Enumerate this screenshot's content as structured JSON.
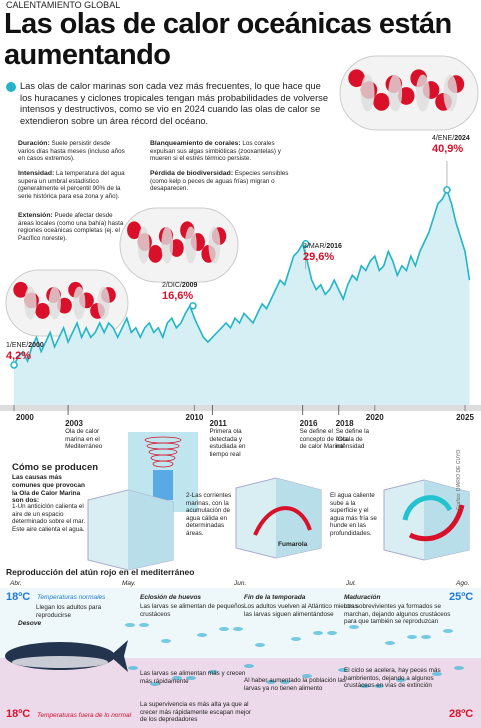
{
  "header": {
    "kicker": "CALENTAMIENTO GLOBAL",
    "title": "Las olas de calor oceánicas están aumentando",
    "intro": "Las olas de calor marinas son cada vez más frecuentes, lo que hace que los huracanes y ciclones tropicales tengan más probabilidades de volverse intensos y destructivos, como se vio en 2024 cuando las olas de calor se extendieron sobre un área récord del océano."
  },
  "definitions": [
    {
      "term": "Duración:",
      "text": "Suele persistir desde varios días hasta meses (incluso años en casos extremos)."
    },
    {
      "term": "Intensidad:",
      "text": "La temperatura del agua supera un umbral estadístico (generalmente el percentil 90% de la serie histórica para esa zona y año)."
    },
    {
      "term": "Extensión:",
      "text": "Puede afectar desde áreas locales (como una bahía) hasta regiones oceánicas completas (ej. el Pacífico noreste)."
    },
    {
      "term": "Blanqueamiento de corales:",
      "text": "Los corales expulsan sus algas simbióticas (zooxantelas) y mueren si el estrés térmico persiste."
    },
    {
      "term": "Pérdida de biodiversidad:",
      "text": "Especies sensibles (como kelp o peces de aguas frías) migran o desaparecen."
    }
  ],
  "chart_data": {
    "type": "line",
    "color": "#22b5c8",
    "area_color": "#d5eff4",
    "x": [
      2000,
      2000.25,
      2000.5,
      2000.75,
      2001,
      2001.25,
      2001.5,
      2001.75,
      2002,
      2002.25,
      2002.5,
      2002.75,
      2003,
      2003.25,
      2003.5,
      2003.75,
      2004,
      2004.25,
      2004.5,
      2004.75,
      2005,
      2005.25,
      2005.5,
      2005.75,
      2006,
      2006.25,
      2006.5,
      2006.75,
      2007,
      2007.25,
      2007.5,
      2007.75,
      2008,
      2008.25,
      2008.5,
      2008.75,
      2009,
      2009.25,
      2009.5,
      2009.75,
      2010,
      2010.25,
      2010.5,
      2010.75,
      2011,
      2011.25,
      2011.5,
      2011.75,
      2012,
      2012.25,
      2012.5,
      2012.75,
      2013,
      2013.25,
      2013.5,
      2013.75,
      2014,
      2014.25,
      2014.5,
      2014.75,
      2015,
      2015.25,
      2015.5,
      2015.75,
      2016,
      2016.25,
      2016.5,
      2016.75,
      2017,
      2017.25,
      2017.5,
      2017.75,
      2018,
      2018.25,
      2018.5,
      2018.75,
      2019,
      2019.25,
      2019.5,
      2019.75,
      2020,
      2020.25,
      2020.5,
      2020.75,
      2021,
      2021.25,
      2021.5,
      2021.75,
      2022,
      2022.25,
      2022.5,
      2022.75,
      2023,
      2023.25,
      2023.5,
      2023.75,
      2024,
      2024.25,
      2024.5,
      2024.75,
      2025,
      2025.25
    ],
    "values": [
      4.2,
      6,
      7,
      5,
      8,
      10,
      7,
      9,
      11,
      8,
      10,
      12,
      9,
      11,
      13,
      10,
      12,
      10,
      11,
      13,
      11,
      13,
      12,
      10,
      12,
      14,
      11,
      12,
      10,
      12,
      13,
      11,
      12,
      10,
      13,
      14,
      12,
      13,
      15,
      16.6,
      14,
      12,
      10,
      9,
      10,
      11,
      12,
      13,
      12,
      14,
      13,
      15,
      14,
      13,
      15,
      17,
      16,
      18,
      20,
      22,
      21,
      24,
      27,
      28,
      29.6,
      26,
      22,
      20,
      21,
      19,
      20,
      22,
      20,
      18,
      21,
      23,
      22,
      25,
      24,
      26,
      27,
      24,
      25,
      28,
      26,
      23,
      25,
      24,
      27,
      25,
      28,
      30,
      32,
      35,
      38,
      39,
      40.9,
      38,
      34,
      31,
      28,
      22
    ],
    "xticks": [
      2000,
      2010,
      2020,
      2025
    ],
    "annotations": [
      {
        "date": "1/ENE/",
        "year": "2000",
        "x": 2000,
        "value": 4.2,
        "label": "4,2%"
      },
      {
        "date": "2/DIC/",
        "year": "2009",
        "x": 2009.92,
        "value": 16.6,
        "label": "16,6%"
      },
      {
        "date": "3/MAR/",
        "year": "2016",
        "x": 2016.17,
        "value": 29.6,
        "label": "29,6%"
      },
      {
        "date": "4/ENE/",
        "year": "2024",
        "x": 2024,
        "value": 40.9,
        "label": "40,9%"
      }
    ],
    "events": [
      {
        "year": 2003,
        "text": "Ola de calor marina en el Mediterráneo"
      },
      {
        "year": 2011,
        "text": "Primera ola detectada y estudiada en tiempo real"
      },
      {
        "year": 2016,
        "text": "Se define el concepto de \"Ola de calor Marina\""
      },
      {
        "year": 2018,
        "text": "Se define la escala de intensidad"
      }
    ]
  },
  "causes": {
    "title": "Cómo se producen",
    "lead": "Las causas más comunes que provocan la Ola de Calor Marina son dos:",
    "cause1": "1-Un anticiclón calienta el aire de un espacio determinado sobre el mar. Este aire calienta el agua.",
    "cause2": "2-Las corrientes marinas, con la acumulación de agua cálida en determinadas áreas.",
    "vent": "Fumarola",
    "cause3": "El agua caliente sube a la superficie y el agua más fría se hunde en las profundidades.",
    "credit": "Grafico: DIARIO DE CUYO"
  },
  "tuna": {
    "title": "Reproducción del atún rojo en el mediterráneo",
    "months": [
      "Abr.",
      "May.",
      "Jun.",
      "Jul.",
      "Ago."
    ],
    "normal_start": "18ºC",
    "normal_label": "Temperaturas normales",
    "normal_end": "25ºC",
    "abnormal_start": "18ºC",
    "abnormal_label": "Temperaturas fuera de lo normal",
    "abnormal_end": "28ºC",
    "stages": [
      {
        "name": "Desove",
        "normal": "Llegan los adultos para reproducirse"
      },
      {
        "name": "Eclosión de huevos",
        "normal": "Las larvas se alimentan de pequeños crustáceos",
        "abnormal": "Las larvas se alimentan más y crecen más rápidamente",
        "abnormal2": "La supervivencia es más alta ya que al crecer más rápidamente escapan mejor de los depredadores"
      },
      {
        "name": "Fin de la temporada",
        "normal": "Los adultos vuelven al Atlántico mientras las larvas siguen alimentándose",
        "abnormal": "Al haber aumentado la población las larvas ya no tienen alimento"
      },
      {
        "name": "Maduración",
        "normal": "Los sobrevivientes ya formados se marchan, dejando algunos crustáceos para que también se reproduzcan",
        "abnormal": "El ciclo se acelera, hay peces más hambrientos, dejando a algunos crustáceos en vías de extinción"
      }
    ]
  }
}
